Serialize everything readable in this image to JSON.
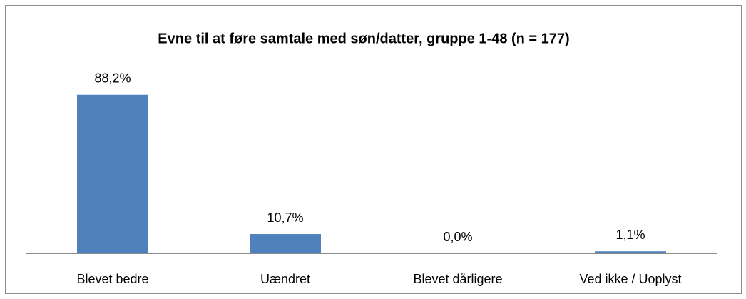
{
  "chart_data": {
    "type": "bar",
    "title": "Evne til at føre samtale med søn/datter, gruppe 1-48 (n = 177)",
    "categories": [
      "Blevet bedre",
      "Uændret",
      "Blevet dårligere",
      "Ved ikke / Uoplyst"
    ],
    "values": [
      88.2,
      10.7,
      0,
      1.1
    ],
    "value_labels": [
      "88,2%",
      "10,7%",
      "0,0%",
      "1,1%"
    ],
    "color": "#4f81bd",
    "ylim": [
      0,
      100
    ]
  }
}
